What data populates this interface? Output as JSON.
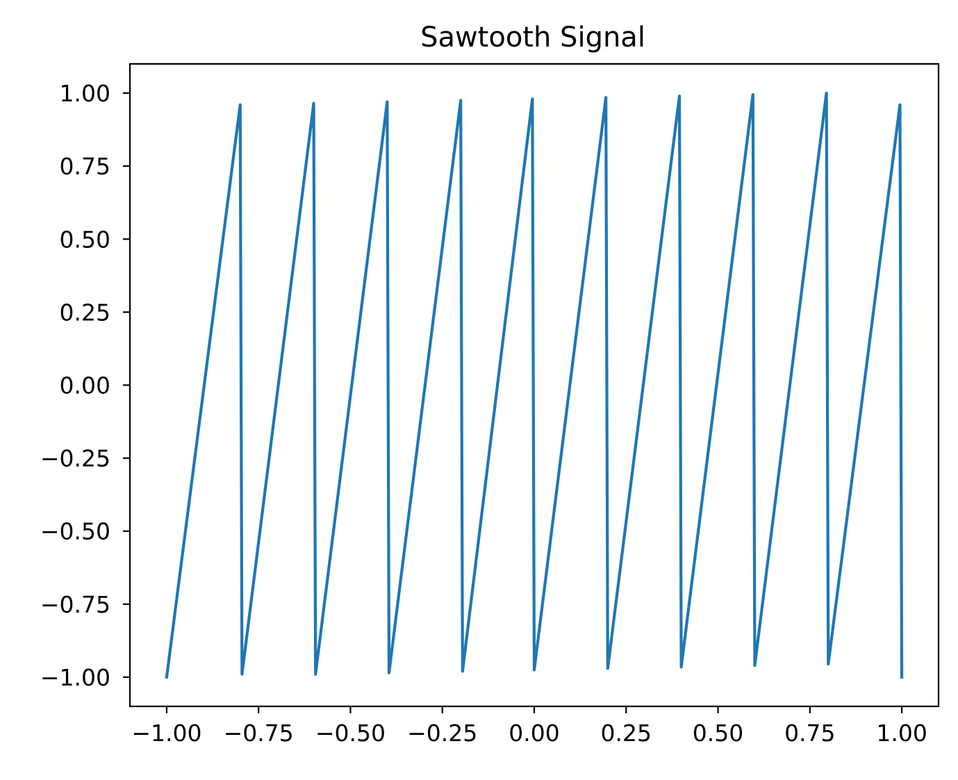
{
  "chart_data": {
    "type": "line",
    "title": "Sawtooth Signal",
    "xlabel": "",
    "ylabel": "",
    "xlim": [
      -1.1,
      1.1
    ],
    "ylim": [
      -1.1,
      1.1
    ],
    "grid": false,
    "x_ticks": [
      -1.0,
      -0.75,
      -0.5,
      -0.25,
      0.0,
      0.25,
      0.5,
      0.75,
      1.0
    ],
    "x_tick_labels": [
      "−1.00",
      "−0.75",
      "−0.50",
      "−0.25",
      "0.00",
      "0.25",
      "0.50",
      "0.75",
      "1.00"
    ],
    "y_ticks": [
      1.0,
      0.75,
      0.5,
      0.25,
      0.0,
      -0.25,
      -0.5,
      -0.75,
      -1.0
    ],
    "y_tick_labels": [
      "1.00",
      "0.75",
      "0.50",
      "0.25",
      "0.00",
      "−0.25",
      "−0.50",
      "−0.75",
      "−1.00"
    ],
    "series": [
      {
        "color": "#1f77b4",
        "points": [
          [
            -1.0,
            -1.0
          ],
          [
            -0.8,
            0.96
          ],
          [
            -0.795,
            -0.99
          ],
          [
            -0.6,
            0.965
          ],
          [
            -0.595,
            -0.99
          ],
          [
            -0.4,
            0.97
          ],
          [
            -0.395,
            -0.985
          ],
          [
            -0.2,
            0.975
          ],
          [
            -0.195,
            -0.98
          ],
          [
            -0.005,
            0.98
          ],
          [
            0.0,
            -0.975
          ],
          [
            0.195,
            0.985
          ],
          [
            0.2,
            -0.97
          ],
          [
            0.395,
            0.99
          ],
          [
            0.4,
            -0.965
          ],
          [
            0.595,
            0.995
          ],
          [
            0.6,
            -0.96
          ],
          [
            0.795,
            1.0
          ],
          [
            0.8,
            -0.955
          ],
          [
            0.995,
            0.96
          ],
          [
            1.0,
            -1.0
          ]
        ]
      }
    ]
  }
}
